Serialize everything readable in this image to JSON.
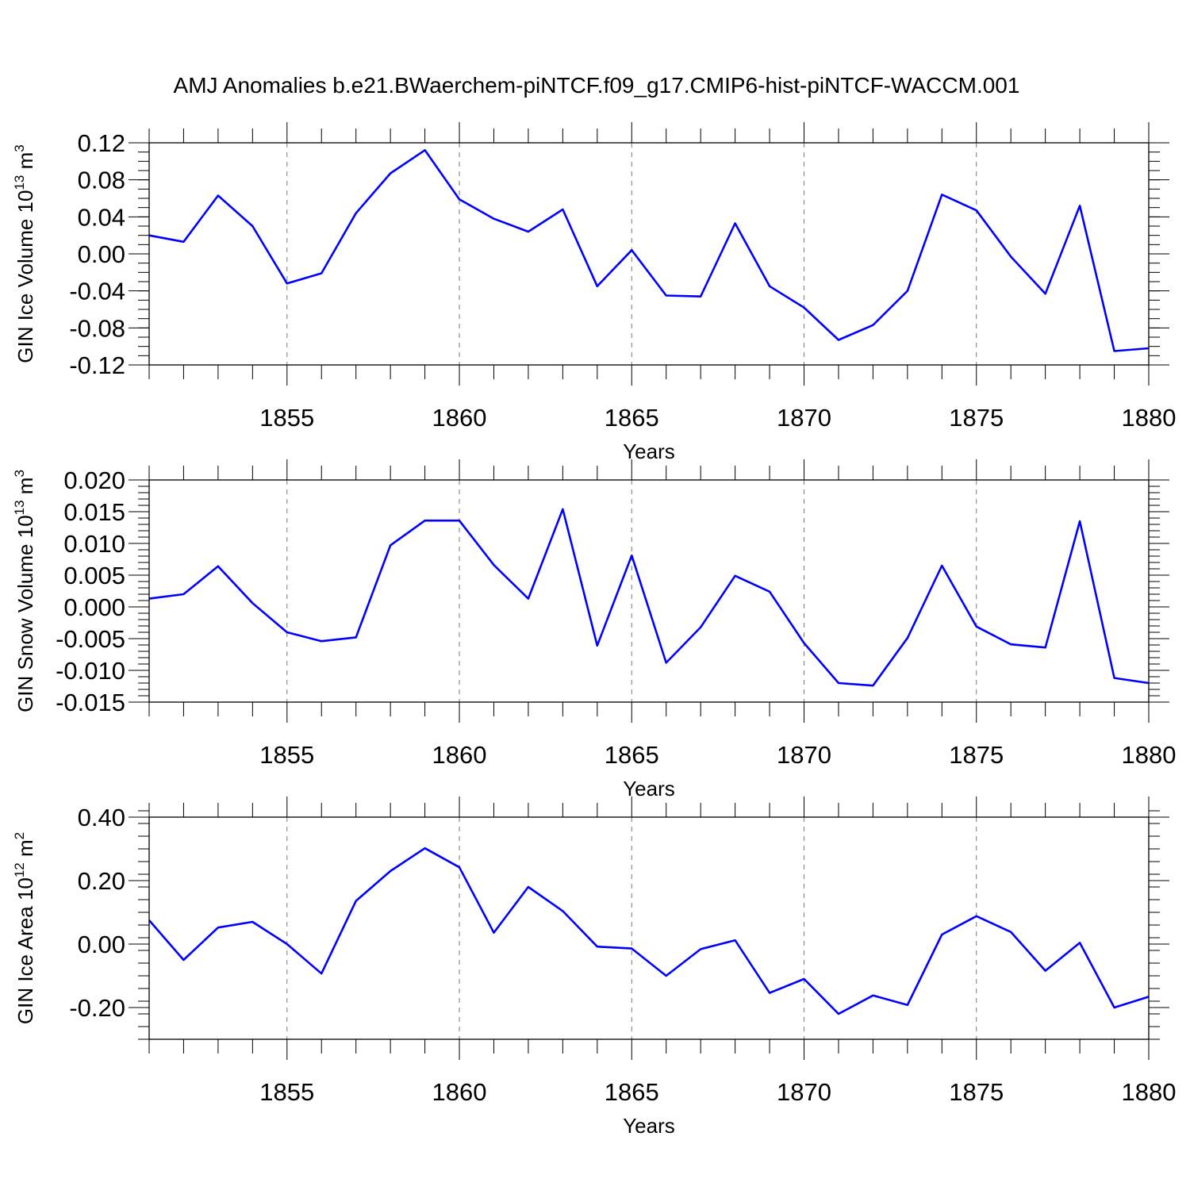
{
  "title": "AMJ Anomalies b.e21.BWaerchem-piNTCF.f09_g17.CMIP6-hist-piNTCF-WACCM.001",
  "chart_data": [
    {
      "type": "line",
      "ylabel_main": "GIN Ice Volume 10",
      "ylabel_exp": "13",
      "ylabel_unit": " m",
      "ylabel_unit_exp": "3",
      "xlabel": "Years",
      "xlim": [
        1851,
        1880
      ],
      "ylim": [
        -0.12,
        0.12
      ],
      "yticks": [
        -0.12,
        -0.08,
        -0.04,
        0.0,
        0.04,
        0.08,
        0.12
      ],
      "yticklabels": [
        "-0.12",
        "-0.08",
        "-0.04",
        "0.00",
        "0.04",
        "0.08",
        "0.12"
      ],
      "yminor": 0.01,
      "xticks": [
        1855,
        1860,
        1865,
        1870,
        1875,
        1880
      ],
      "xticklabels": [
        "1855",
        "1860",
        "1865",
        "1870",
        "1875",
        "1880"
      ],
      "series": [
        {
          "name": "GIN Ice Volume",
          "color": "#0000ff",
          "x": [
            1851,
            1852,
            1853,
            1854,
            1855,
            1856,
            1857,
            1858,
            1859,
            1860,
            1861,
            1862,
            1863,
            1864,
            1865,
            1866,
            1867,
            1868,
            1869,
            1870,
            1871,
            1872,
            1873,
            1874,
            1875,
            1876,
            1877,
            1878,
            1879,
            1880
          ],
          "values": [
            0.02,
            0.013,
            0.063,
            0.03,
            -0.032,
            -0.021,
            0.044,
            0.087,
            0.112,
            0.059,
            0.038,
            0.024,
            0.048,
            -0.035,
            0.004,
            -0.045,
            -0.046,
            0.033,
            -0.035,
            -0.058,
            -0.093,
            -0.077,
            -0.04,
            0.064,
            0.047,
            -0.003,
            -0.043,
            0.052,
            -0.105,
            -0.102
          ]
        }
      ]
    },
    {
      "type": "line",
      "ylabel_main": "GIN Snow Volume 10",
      "ylabel_exp": "13",
      "ylabel_unit": " m",
      "ylabel_unit_exp": "3",
      "xlabel": "Years",
      "xlim": [
        1851,
        1880
      ],
      "ylim": [
        -0.015,
        0.02
      ],
      "yticks": [
        -0.015,
        -0.01,
        -0.005,
        0.0,
        0.005,
        0.01,
        0.015,
        0.02
      ],
      "yticklabels": [
        "-0.015",
        "-0.010",
        "-0.005",
        "0.000",
        "0.005",
        "0.010",
        "0.015",
        "0.020"
      ],
      "yminor": 0.001,
      "xticks": [
        1855,
        1860,
        1865,
        1870,
        1875,
        1880
      ],
      "xticklabels": [
        "1855",
        "1860",
        "1865",
        "1870",
        "1875",
        "1880"
      ],
      "series": [
        {
          "name": "GIN Snow Volume",
          "color": "#0000ff",
          "x": [
            1851,
            1852,
            1853,
            1854,
            1855,
            1856,
            1857,
            1858,
            1859,
            1860,
            1861,
            1862,
            1863,
            1864,
            1865,
            1866,
            1867,
            1868,
            1869,
            1870,
            1871,
            1872,
            1873,
            1874,
            1875,
            1876,
            1877,
            1878,
            1879,
            1880
          ],
          "values": [
            0.0013,
            0.002,
            0.0064,
            0.0006,
            -0.004,
            -0.0054,
            -0.0048,
            0.0097,
            0.0136,
            0.0136,
            0.0066,
            0.0013,
            0.0154,
            -0.0061,
            0.0081,
            -0.0088,
            -0.0032,
            0.0049,
            0.0024,
            -0.0057,
            -0.012,
            -0.0124,
            -0.0049,
            0.0065,
            -0.0031,
            -0.0059,
            -0.0064,
            0.0135,
            -0.0112,
            -0.012
          ]
        }
      ]
    },
    {
      "type": "line",
      "ylabel_main": "GIN Ice Area 10",
      "ylabel_exp": "12",
      "ylabel_unit": " m",
      "ylabel_unit_exp": "2",
      "xlabel": "Years",
      "xlim": [
        1851,
        1880
      ],
      "ylim": [
        -0.3,
        0.4
      ],
      "yticks": [
        -0.2,
        0.0,
        0.2,
        0.4
      ],
      "yticklabels": [
        "-0.20",
        "0.00",
        "0.20",
        "0.40"
      ],
      "yminor": 0.04,
      "xticks": [
        1855,
        1860,
        1865,
        1870,
        1875,
        1880
      ],
      "xticklabels": [
        "1855",
        "1860",
        "1865",
        "1870",
        "1875",
        "1880"
      ],
      "series": [
        {
          "name": "GIN Ice Area",
          "color": "#0000ff",
          "x": [
            1851,
            1852,
            1853,
            1854,
            1855,
            1856,
            1857,
            1858,
            1859,
            1860,
            1861,
            1862,
            1863,
            1864,
            1865,
            1866,
            1867,
            1868,
            1869,
            1870,
            1871,
            1872,
            1873,
            1874,
            1875,
            1876,
            1877,
            1878,
            1879,
            1880
          ],
          "values": [
            0.075,
            -0.05,
            0.052,
            0.07,
            0.0,
            -0.093,
            0.136,
            0.23,
            0.302,
            0.242,
            0.036,
            0.18,
            0.104,
            -0.008,
            -0.014,
            -0.1,
            -0.016,
            0.012,
            -0.154,
            -0.11,
            -0.22,
            -0.162,
            -0.192,
            0.03,
            0.088,
            0.038,
            -0.084,
            0.004,
            -0.2,
            -0.166
          ]
        }
      ]
    }
  ]
}
